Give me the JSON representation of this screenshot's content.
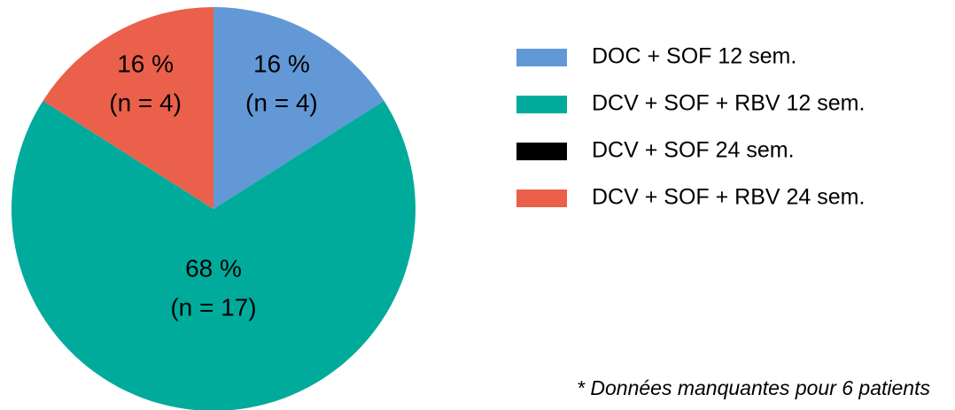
{
  "chart_data": {
    "type": "pie",
    "categories": [
      "DOC + SOF 12 sem.",
      "DCV + SOF + RBV 12 sem.",
      "DCV + SOF 24 sem.",
      "DCV + SOF + RBV 24 sem."
    ],
    "values": [
      16,
      68,
      0,
      16
    ],
    "value_labels": [
      "16 %",
      "68 %",
      null,
      "16 %"
    ],
    "counts": [
      4,
      17,
      null,
      4
    ],
    "count_labels": [
      "(n = 4)",
      "(n = 17)",
      null,
      "(n = 4)"
    ],
    "colors": [
      "#6398d6",
      "#00ab9c",
      "#000000",
      "#ea604a"
    ],
    "note": "* Données manquantes pour 6 patients"
  }
}
